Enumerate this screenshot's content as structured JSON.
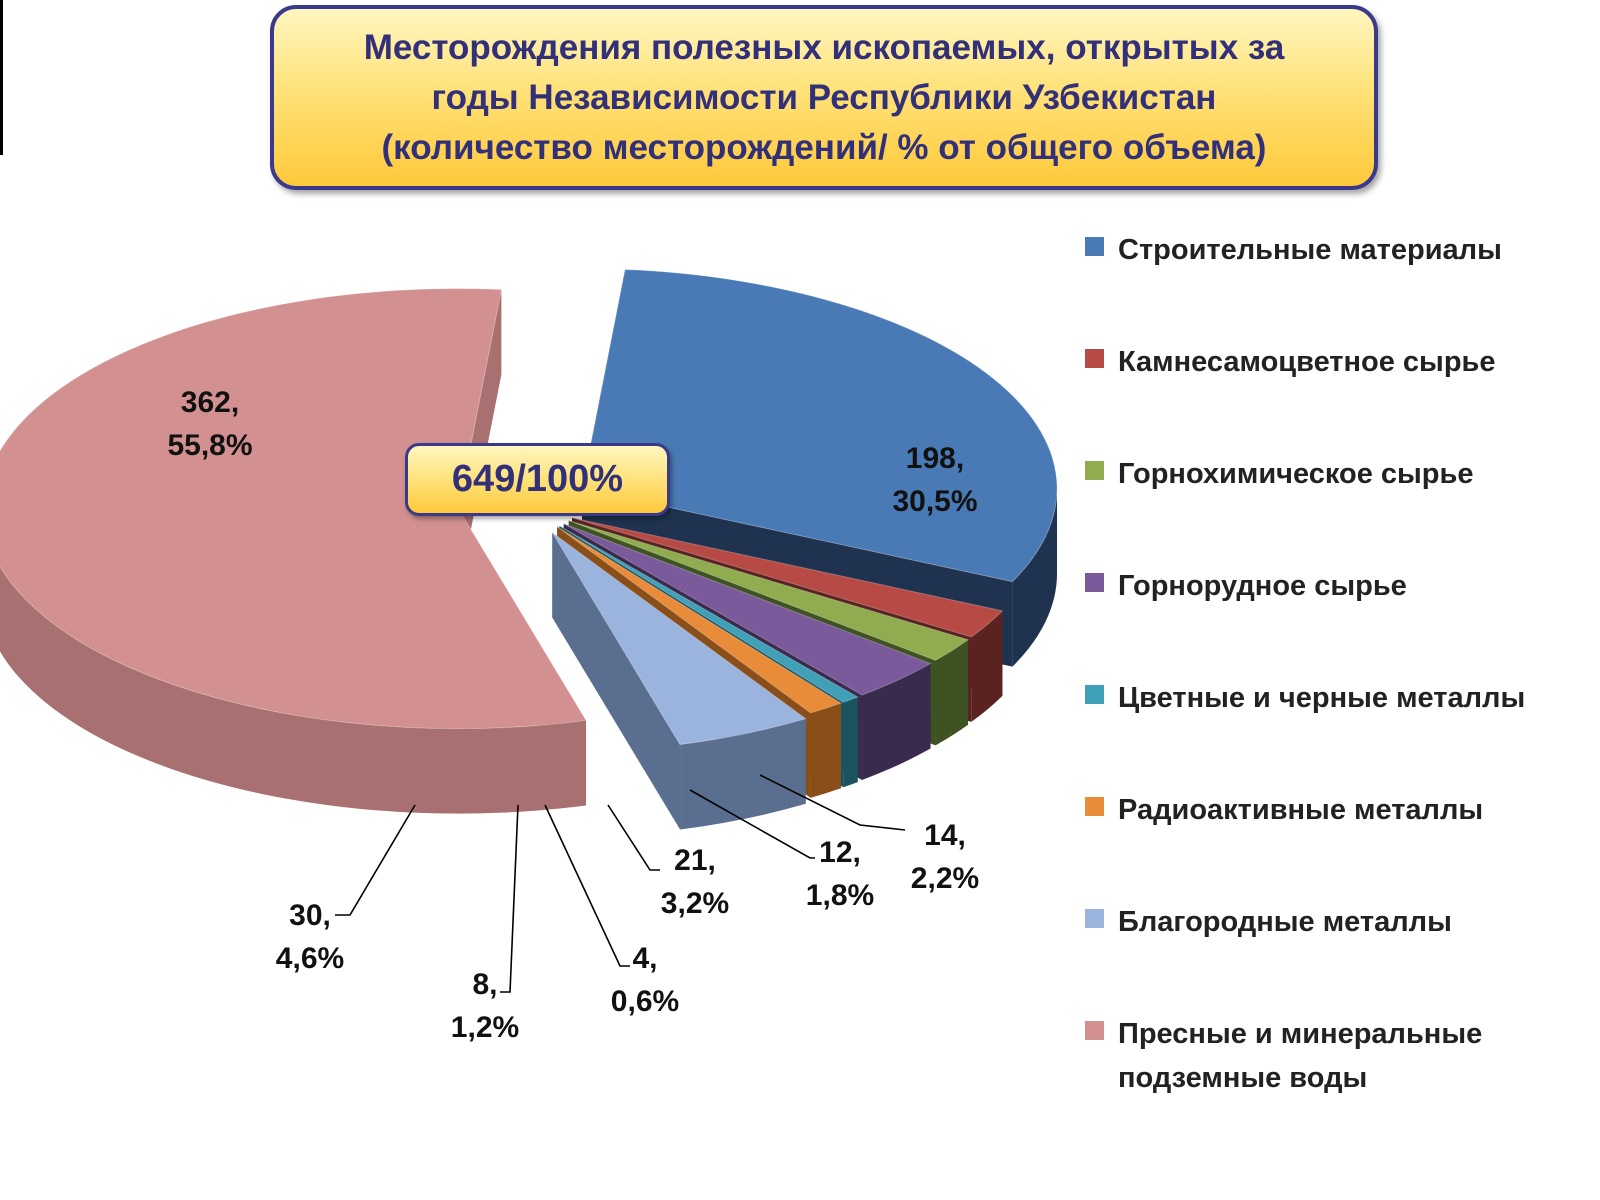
{
  "title": {
    "line1": "Месторождения полезных ископаемых, открытых за",
    "line2": "годы Независимости Республики Узбекистан",
    "line3": "(количество месторождений/ % от общего объема)"
  },
  "total_label": "649/100%",
  "chart_data": {
    "type": "pie",
    "title": "Месторождения полезных ископаемых, открытых за годы Независимости Республики Узбекистан (количество месторождений/ % от общего объема)",
    "total": 649,
    "legend_position": "right",
    "slices": [
      {
        "name": "Строительные материалы",
        "value": 198,
        "percent": "30,5%",
        "color": "#4a7ab5",
        "side": "#1f3350",
        "label_line1": "198,",
        "label_line2": "30,5%"
      },
      {
        "name": "Камнесамоцветное сырье",
        "value": 14,
        "percent": "2,2%",
        "color": "#b84a46",
        "side": "#5a2220",
        "label_line1": "14,",
        "label_line2": "2,2%"
      },
      {
        "name": "Горнохимическое сырье",
        "value": 12,
        "percent": "1,8%",
        "color": "#8fad4e",
        "side": "#3f5222",
        "label_line1": "12,",
        "label_line2": "1,8%"
      },
      {
        "name": "Горнорудное сырье",
        "value": 21,
        "percent": "3,2%",
        "color": "#7a5a9a",
        "side": "#3a2a4e",
        "label_line1": "21,",
        "label_line2": "3,2%"
      },
      {
        "name": "Цветные и черные металлы",
        "value": 4,
        "percent": "0,6%",
        "color": "#3fa0b8",
        "side": "#1c5360",
        "label_line1": "4,",
        "label_line2": "0,6%"
      },
      {
        "name": "Радиоактивные металлы",
        "value": 8,
        "percent": "1,2%",
        "color": "#e88c3a",
        "side": "#8a4e18",
        "label_line1": "8,",
        "label_line2": "1,2%"
      },
      {
        "name": "Благородные металлы",
        "value": 30,
        "percent": "4,6%",
        "color": "#9ab4de",
        "side": "#5a6e90",
        "label_line1": "30,",
        "label_line2": "4,6%"
      },
      {
        "name": "Пресные и минеральные\nподземные воды",
        "value": 362,
        "percent": "55,8%",
        "color": "#d29090",
        "side": "#a87070",
        "label_line1": "362,",
        "label_line2": "55,8%"
      }
    ]
  }
}
